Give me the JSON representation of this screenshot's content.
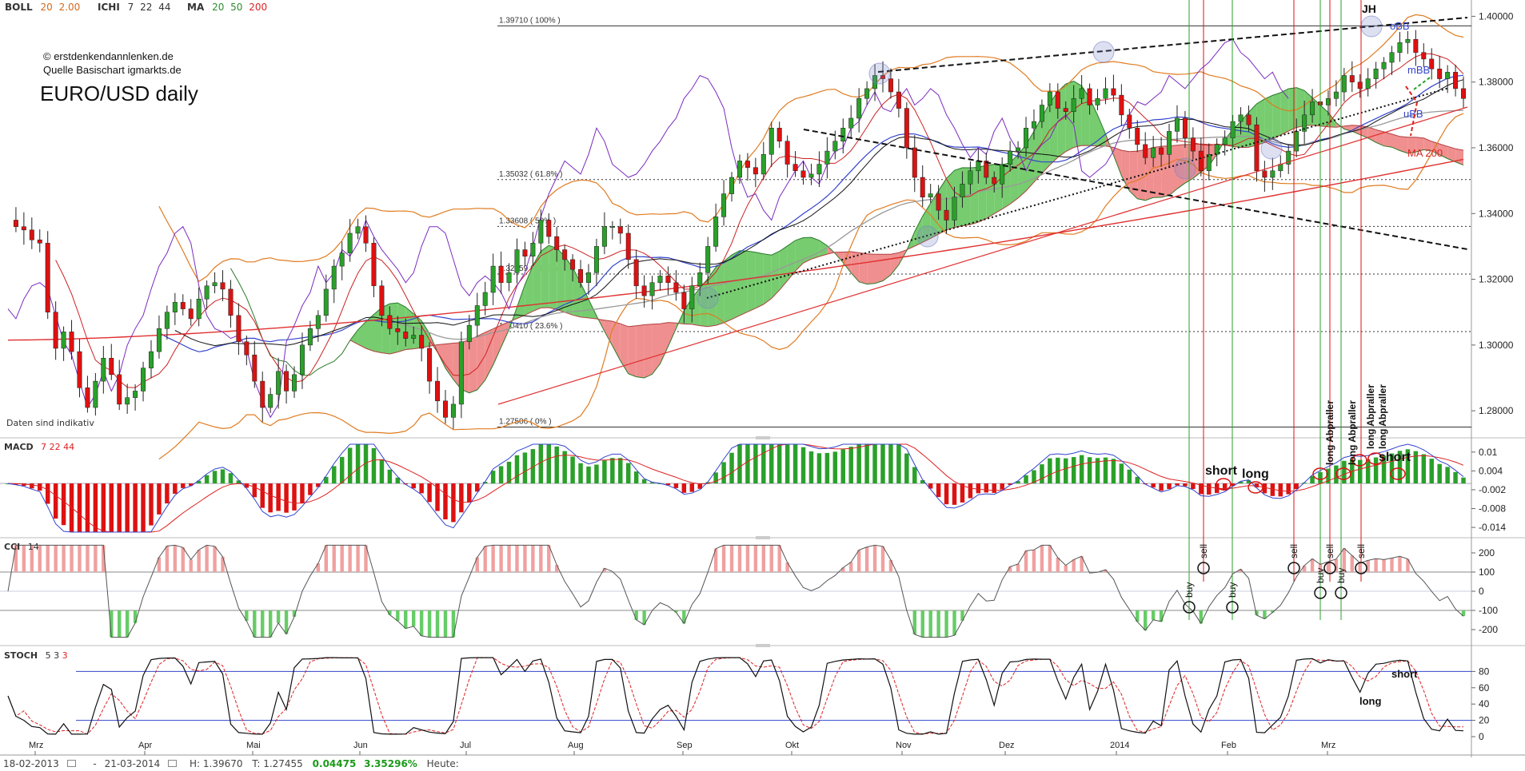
{
  "toolbar": {
    "items": [
      {
        "label": "BOLL",
        "params": [
          "20",
          "2.00"
        ],
        "colors": [
          "#d2691e",
          "#d2691e"
        ]
      },
      {
        "label": "ICHI",
        "params": [
          "7",
          "22",
          "44"
        ],
        "colors": [
          "#333333",
          "#333333",
          "#333333"
        ]
      },
      {
        "label": "MA",
        "params": [
          "20",
          "50",
          "200"
        ],
        "colors": [
          "#2e8b2e",
          "#2e8b2e",
          "#dd2222"
        ]
      }
    ]
  },
  "header": {
    "copyright": "© erstdenkendannlenken.de",
    "source": "Quelle Basischart igmarkts.de",
    "title": "EURO/USD daily",
    "disclaimer": "Daten sind indikativ"
  },
  "colors": {
    "bull": "#2aa02a",
    "bear": "#dd1111",
    "cloud_green": "#77cc6f",
    "cloud_red": "#f08f8f",
    "ma200": "#e03030",
    "boll": "#e07b20",
    "bb_mid": "#3344cc",
    "chikou": "#7b2cbf",
    "grid": "#888888",
    "signal_long": "#2aa02a",
    "signal_short": "#dd1111"
  },
  "chart_data": [
    {
      "type": "line",
      "panel": "price",
      "title": "EURO/USD daily",
      "x_ticks": [
        "Mrz",
        "Apr",
        "Mai",
        "Jun",
        "Jul",
        "Aug",
        "Sep",
        "Okt",
        "Nov",
        "Dez",
        "2014",
        "Feb",
        "Mrz"
      ],
      "y_ticks": [
        "1.40000",
        "1.38000",
        "1.36000",
        "1.34000",
        "1.32000",
        "1.30000",
        "1.28000"
      ],
      "ylim": [
        1.2725,
        1.4035
      ],
      "series": [
        {
          "values": [
            1.338,
            1.336,
            1.335,
            1.332,
            1.331,
            1.31,
            1.299,
            1.304,
            1.298,
            1.287,
            1.281,
            1.289,
            1.296,
            1.291,
            1.282,
            1.284,
            1.286,
            1.293,
            1.298,
            1.305,
            1.31,
            1.313,
            1.311,
            1.308,
            1.314,
            1.318,
            1.319,
            1.317,
            1.309,
            1.301,
            1.297,
            1.289,
            1.281,
            1.285,
            1.292,
            1.286,
            1.291,
            1.3,
            1.305,
            1.309,
            1.317,
            1.324,
            1.328,
            1.334,
            1.336,
            1.331,
            1.318,
            1.309,
            1.305,
            1.304,
            1.302,
            1.303,
            1.299,
            1.289,
            1.283,
            1.278,
            1.282,
            1.301,
            1.306,
            1.312,
            1.316,
            1.324,
            1.319,
            1.322,
            1.329,
            1.327,
            1.331,
            1.338,
            1.333,
            1.329,
            1.326,
            1.323,
            1.319,
            1.322,
            1.33,
            1.336,
            1.336,
            1.334,
            1.326,
            1.318,
            1.315,
            1.319,
            1.321,
            1.319,
            1.316,
            1.311,
            1.318,
            1.322,
            1.33,
            1.339,
            1.346,
            1.351,
            1.356,
            1.354,
            1.352,
            1.358,
            1.366,
            1.362,
            1.355,
            1.353,
            1.351,
            1.352,
            1.355,
            1.359,
            1.362,
            1.366,
            1.369,
            1.375,
            1.378,
            1.382,
            1.381,
            1.377,
            1.372,
            1.36,
            1.351,
            1.345,
            1.346,
            1.341,
            1.338,
            1.345,
            1.349,
            1.353,
            1.356,
            1.351,
            1.349,
            1.355,
            1.359,
            1.36,
            1.366,
            1.368,
            1.373,
            1.377,
            1.372,
            1.371,
            1.375,
            1.378,
            1.373,
            1.375,
            1.378,
            1.376,
            1.37,
            1.366,
            1.361,
            1.357,
            1.36,
            1.358,
            1.365,
            1.369,
            1.363,
            1.359,
            1.353,
            1.358,
            1.361,
            1.363,
            1.368,
            1.37,
            1.367,
            1.353,
            1.351,
            1.353,
            1.355,
            1.359,
            1.365,
            1.37,
            1.374,
            1.373,
            1.375,
            1.377,
            1.382,
            1.38,
            1.378,
            1.381,
            1.384,
            1.386,
            1.389,
            1.392,
            1.393,
            1.389,
            1.387,
            1.384,
            1.381,
            1.383,
            1.378,
            1.375
          ],
          "name": ""
        }
      ],
      "annotations": [
        "1.39710 ( 100% )",
        "1.35032 ( 61.8% )",
        "1.33608 ( 50% )",
        "1.32159 ( 38.2% )",
        "1.30410 ( 23.6% )",
        "1.27506 ( 0% )",
        "JH",
        "oBB",
        "mBB",
        "uBB",
        "MA 200"
      ],
      "fib_levels": [
        1.3971,
        1.35032,
        1.33608,
        1.32159,
        1.3041,
        1.27506
      ]
    },
    {
      "type": "bar",
      "panel": "MACD",
      "title": "MACD",
      "params": [
        "7",
        "22",
        "44"
      ],
      "y_ticks": [
        "0.01",
        "0.004",
        "-0.002",
        "-0.008",
        "-0.014"
      ],
      "ylim": [
        -0.0155,
        0.0125
      ],
      "annotations": [
        "short",
        "long",
        "long Abpraller",
        "long Abpraller",
        "long Abpraller",
        "long Abpraller",
        "short"
      ]
    },
    {
      "type": "line",
      "panel": "CCI",
      "title": "CCI",
      "params": [
        "14"
      ],
      "y_ticks": [
        "200",
        "100",
        "0",
        "-100",
        "-200"
      ],
      "ylim": [
        -250,
        250
      ],
      "annotations": [
        "buy",
        "sell",
        "buy",
        "sell",
        "buy",
        "sell",
        "buy",
        "sell"
      ]
    },
    {
      "type": "line",
      "panel": "STOCH",
      "title": "STOCH",
      "params": [
        "5",
        "3",
        "3"
      ],
      "y_ticks": [
        "80",
        "60",
        "40",
        "20",
        "0"
      ],
      "ylim": [
        0,
        100
      ],
      "annotations": [
        "short",
        "long"
      ]
    }
  ],
  "footer": {
    "from": "18-02-2013",
    "to": "21-03-2014",
    "high": "H: 1.39670",
    "low": "T: 1.27455",
    "change_abs": "0.04475",
    "change_pct": "3.35296%",
    "today": "Heute:",
    "dash": "-"
  }
}
